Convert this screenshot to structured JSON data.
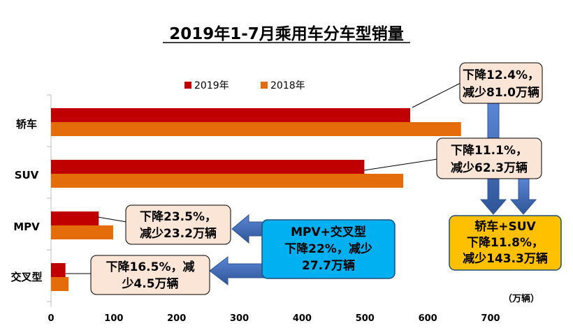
{
  "chart_data": {
    "type": "bar",
    "orientation": "horizontal",
    "title": "2019年1-7月乘用车分车型销量",
    "unit_label": "（万辆）",
    "categories": [
      "轿车",
      "SUV",
      "MPV",
      "交叉型"
    ],
    "series": [
      {
        "name": "2019年",
        "color": "#c00000",
        "values": [
          572,
          499,
          76,
          23
        ]
      },
      {
        "name": "2018年",
        "color": "#e46c0a",
        "values": [
          653,
          561,
          99,
          28
        ]
      }
    ],
    "xlim": [
      0,
      700
    ],
    "xticks": [
      "0",
      "100",
      "200",
      "300",
      "400",
      "500",
      "600",
      "700"
    ],
    "grid": false,
    "legend_position": "top",
    "annotations": {
      "sedan": [
        "下降12.4%，",
        "减少81.0万辆"
      ],
      "suv": [
        "下降11.1%，",
        "减少62.3万辆"
      ],
      "mpv": [
        "下降23.5%，",
        "减少23.2万辆"
      ],
      "crossover": [
        "下降16.5%，减",
        "少4.5万辆"
      ],
      "mpv_crossover": [
        "MPV+交叉型",
        "下降22%，减少",
        "27.7万辆"
      ],
      "sedan_suv": [
        "轿车+SUV",
        "下降11.8%，",
        "减少143.3万辆"
      ]
    },
    "colors": {
      "callout_fill": "#fbe5d6",
      "mpv_crossover_fill": "#00b0f0",
      "sedan_suv_fill": "#ffc000",
      "arrow": "#4472c4"
    }
  }
}
